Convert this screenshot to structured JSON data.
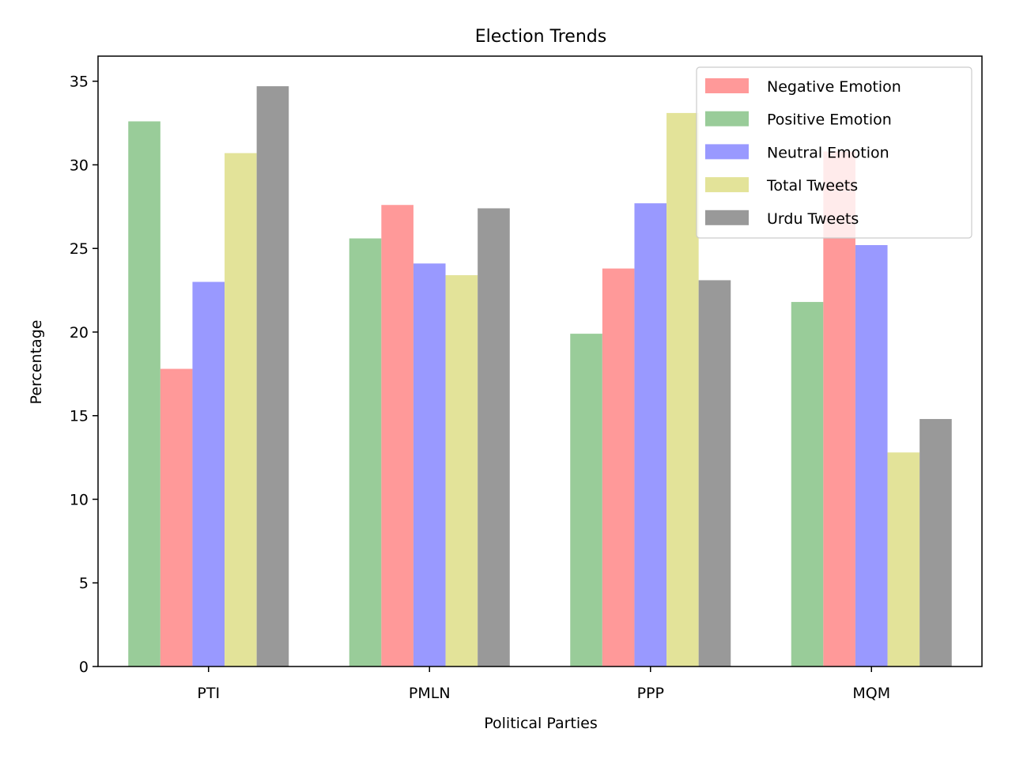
{
  "chart_data": {
    "type": "bar",
    "title": "Election Trends",
    "xlabel": "Political Parties",
    "ylabel": "Percentage",
    "categories": [
      "PTI",
      "PMLN",
      "PPP",
      "MQM"
    ],
    "ylim": [
      0,
      36.5
    ],
    "yticks": [
      "0",
      "5",
      "10",
      "15",
      "20",
      "25",
      "30",
      "35"
    ],
    "grid": false,
    "legend_position": "top-right",
    "bar_order": [
      "Positive Emotion",
      "Negative Emotion",
      "Neutral Emotion",
      "Total Tweets",
      "Urdu Tweets"
    ],
    "series": [
      {
        "name": "Negative Emotion",
        "color": "#ff9999",
        "values": [
          17.8,
          27.6,
          23.8,
          30.8
        ]
      },
      {
        "name": "Positive Emotion",
        "color": "#99cc99",
        "values": [
          32.6,
          25.6,
          19.9,
          21.8
        ]
      },
      {
        "name": "Neutral Emotion",
        "color": "#9999ff",
        "values": [
          23.0,
          24.1,
          27.7,
          25.2
        ]
      },
      {
        "name": "Total Tweets",
        "color": "#e3e399",
        "values": [
          30.7,
          23.4,
          33.1,
          12.8
        ]
      },
      {
        "name": "Urdu Tweets",
        "color": "#999999",
        "values": [
          34.7,
          27.4,
          23.1,
          14.8
        ]
      }
    ]
  }
}
